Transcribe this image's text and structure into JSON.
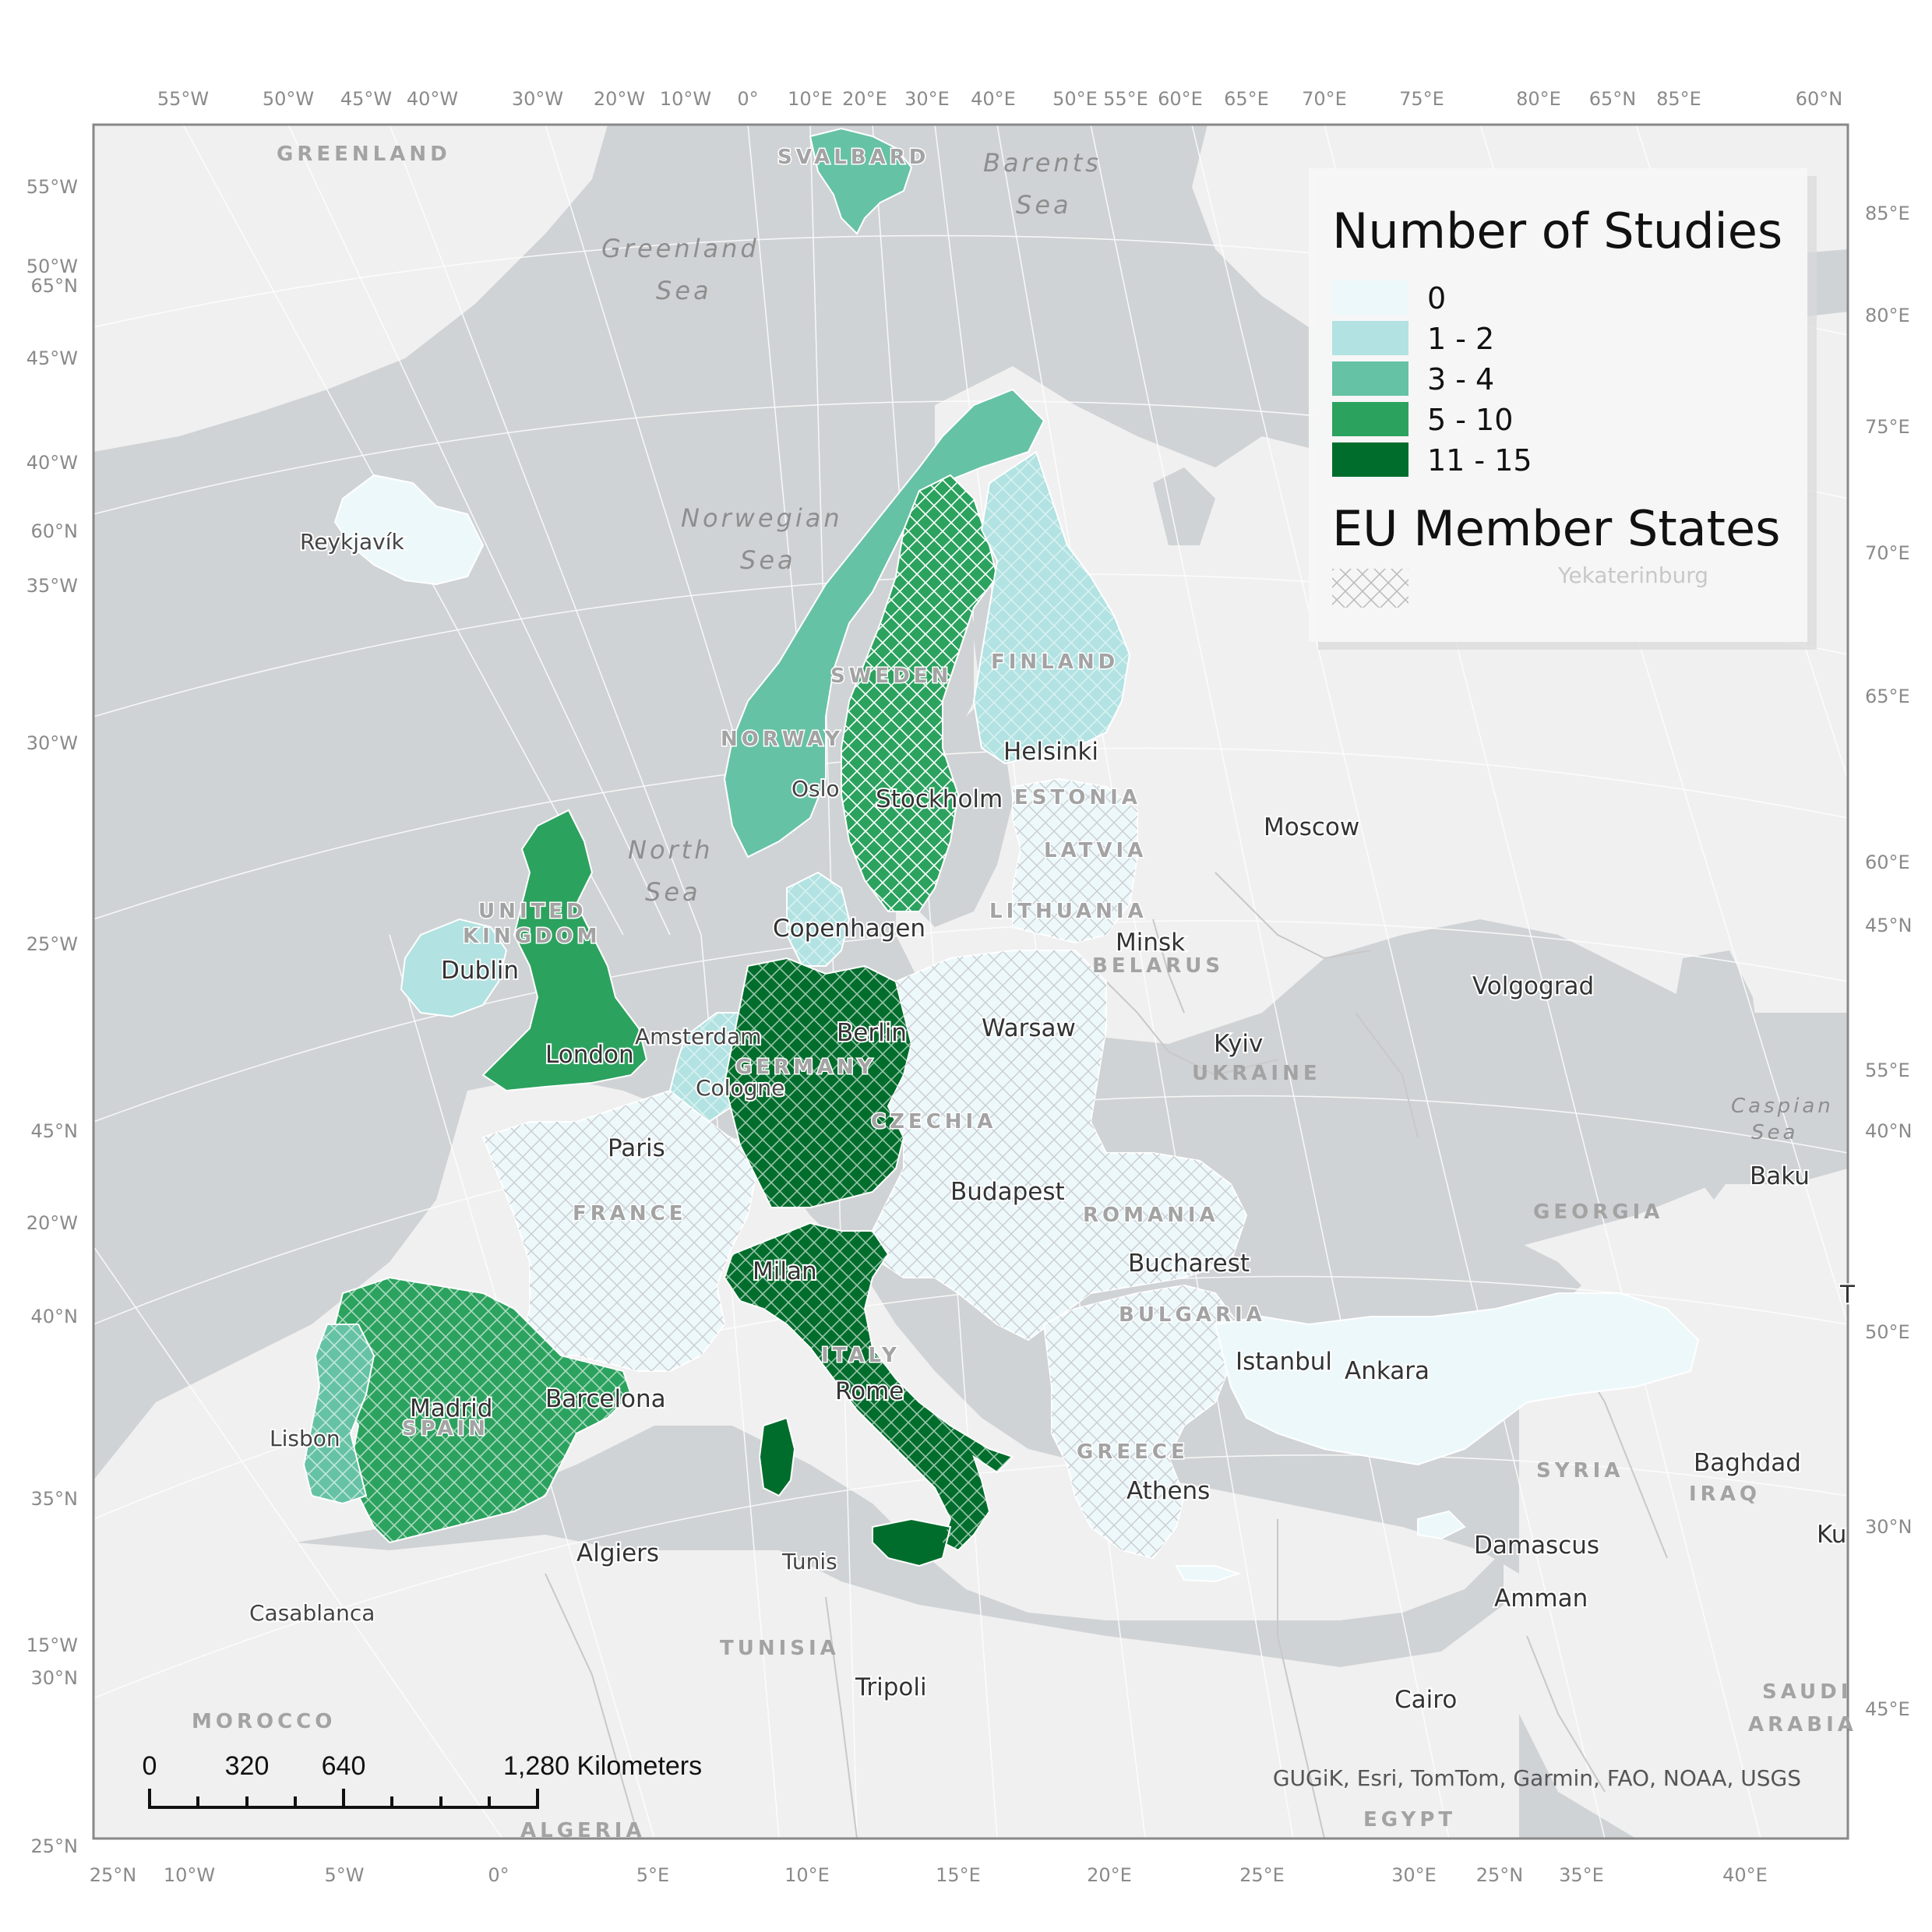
{
  "map": {
    "legend": {
      "title": "Number of Studies",
      "classes": [
        {
          "label": "0",
          "color": "#edf8fb"
        },
        {
          "label": "1 - 2",
          "color": "#b2e2e2"
        },
        {
          "label": "3 - 4",
          "color": "#66c2a4"
        },
        {
          "label": "5 - 10",
          "color": "#2ca25f"
        },
        {
          "label": "11 - 15",
          "color": "#006d2c"
        }
      ],
      "eu_title": "EU Member States",
      "eu_overlay_label": "Yekaterinburg"
    },
    "scale_bar": {
      "labels": [
        "0",
        "320",
        "640",
        "1,280 Kilometers"
      ]
    },
    "credit": "GUGiK, Esri, TomTom, Garmin, FAO, NOAA, USGS",
    "graticule_top": [
      "55°W",
      "50°W",
      "45°W",
      "40°W",
      "30°W",
      "20°W",
      "10°W",
      "0°",
      "10°E",
      "20°E",
      "30°E",
      "40°E",
      "50°E",
      "55°E",
      "60°E",
      "65°E",
      "70°E",
      "75°E",
      "80°E",
      "65°N",
      "85°E",
      "60°N"
    ],
    "graticule_bottom": [
      "25°N",
      "10°W",
      "5°W",
      "0°",
      "5°E",
      "10°E",
      "15°E",
      "20°E",
      "25°E",
      "30°E",
      "25°N",
      "35°E",
      "40°E"
    ],
    "graticule_left": [
      "55°W",
      "50°W",
      "65°N",
      "45°W",
      "40°W",
      "60°N",
      "35°W",
      "30°W",
      "25°W",
      "45°N",
      "20°W",
      "40°N",
      "35°N",
      "15°W",
      "30°N",
      "25°N"
    ],
    "graticule_right": [
      "85°E",
      "80°E",
      "75°E",
      "70°E",
      "65°E",
      "60°E",
      "45°N",
      "55°E",
      "40°N",
      "50°E",
      "30°N",
      "45°E"
    ],
    "country_labels": [
      "GREENLAND",
      "SVALBARD",
      "SWEDEN",
      "FINLAND",
      "NORWAY",
      "ESTONIA",
      "LATVIA",
      "LITHUANIA",
      "UNITED",
      "KINGDOM",
      "BELARUS",
      "UKRAINE",
      "GERMANY",
      "CZECHIA",
      "FRANCE",
      "ROMANIA",
      "BULGARIA",
      "ITALY",
      "SPAIN",
      "GREECE",
      "GEORGIA",
      "SYRIA",
      "IRAQ",
      "TUNISIA",
      "MOROCCO",
      "ALGERIA",
      "EGYPT",
      "SAUDI",
      "ARABIA"
    ],
    "sea_labels": [
      "Barents",
      "Sea",
      "Greenland",
      "Sea",
      "Norwegian",
      "Sea",
      "North",
      "Sea",
      "Caspian",
      "Sea"
    ],
    "cities": [
      "Reykjavík",
      "Helsinki",
      "Oslo",
      "Stockholm",
      "Moscow",
      "Copenhagen",
      "Minsk",
      "Dublin",
      "Volgograd",
      "Amsterdam",
      "Berlin",
      "Warsaw",
      "London",
      "Kyiv",
      "Cologne",
      "Paris",
      "Budapest",
      "Baku",
      "Milan",
      "Bucharest",
      "Istanbul",
      "Ankara",
      "Madrid",
      "Barcelona",
      "Rome",
      "Lisbon",
      "Athens",
      "Baghdad",
      "Algiers",
      "Tunis",
      "Damascus",
      "Amman",
      "Casablanca",
      "Tripoli",
      "Cairo",
      "Ku",
      "T"
    ],
    "country_study_classes": {
      "Iceland": "0",
      "Ireland": "1 - 2",
      "United Kingdom": "5 - 10",
      "Norway": "3 - 4",
      "Sweden": "5 - 10",
      "Finland": "1 - 2",
      "Denmark": "1 - 2",
      "Germany": "11 - 15",
      "Netherlands": "1 - 2",
      "Belgium": "1 - 2",
      "France": "0",
      "Spain": "5 - 10",
      "Portugal": "3 - 4",
      "Italy": "11 - 15",
      "Poland": "0",
      "Czechia": "0",
      "Austria": "0",
      "Romania": "0",
      "Bulgaria": "0",
      "Greece": "0",
      "Turkey": "0",
      "Estonia": "0",
      "Latvia": "0",
      "Lithuania": "0",
      "Svalbard": "3 - 4"
    }
  }
}
